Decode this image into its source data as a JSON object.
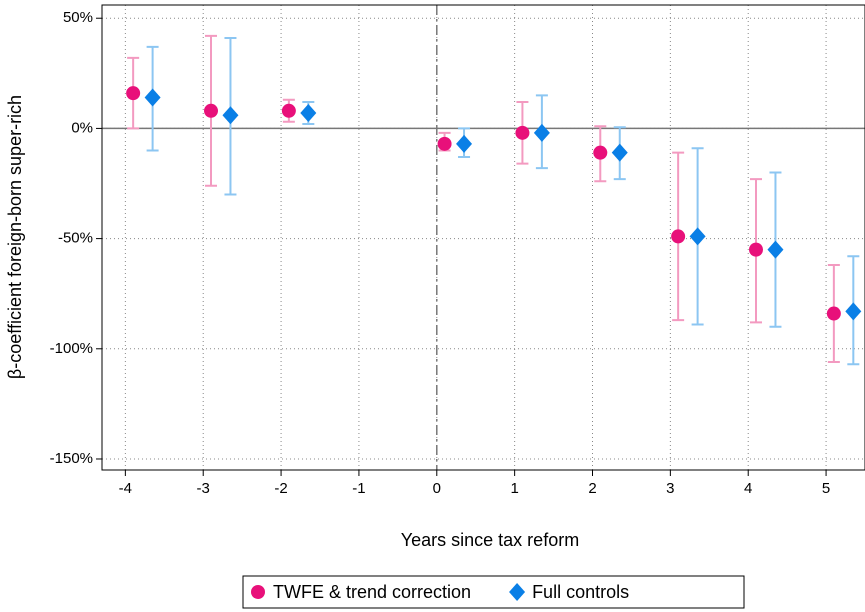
{
  "chart_data": {
    "type": "errorbar",
    "x_label": "Years since tax reform",
    "y_label": "β-coefficient foreign-born super-rich",
    "xlim": [
      -4.3,
      5.5
    ],
    "ylim": [
      -155,
      56
    ],
    "xticks": [
      -4,
      -3,
      -2,
      -1,
      0,
      1,
      2,
      3,
      4,
      5
    ],
    "yticks": [
      {
        "value": 50,
        "label": "50%"
      },
      {
        "value": 0,
        "label": "0%"
      },
      {
        "value": -50,
        "label": "-50%"
      },
      {
        "value": -100,
        "label": "-100%"
      },
      {
        "value": -150,
        "label": "-150%"
      }
    ],
    "grid": true,
    "legend": "bottom",
    "series": [
      {
        "name": "TWFE & trend correction",
        "color": "#e8107a",
        "ci_color": "#f39ac0",
        "marker": "circle",
        "x": [
          -3.9,
          -2.9,
          -1.9,
          0.1,
          1.1,
          2.1,
          3.1,
          4.1,
          5.1
        ],
        "values": [
          16,
          8,
          8,
          -7,
          -2,
          -11,
          -49,
          -55,
          -84
        ],
        "lower": [
          0,
          -26,
          3,
          -10,
          -16,
          -24,
          -87,
          -88,
          -106
        ],
        "upper": [
          32,
          42,
          13,
          -2,
          12,
          1,
          -11,
          -23,
          -62
        ]
      },
      {
        "name": "Full controls",
        "color": "#0a7fe6",
        "ci_color": "#8cc6f2",
        "marker": "diamond",
        "x": [
          -3.65,
          -2.65,
          -1.65,
          0.35,
          1.35,
          2.35,
          3.35,
          4.35,
          5.35
        ],
        "values": [
          14,
          6,
          7,
          -7,
          -2,
          -11,
          -49,
          -55,
          -83
        ],
        "lower": [
          -10,
          -30,
          2,
          -13,
          -18,
          -23,
          -89,
          -90,
          -107
        ],
        "upper": [
          37,
          41,
          12,
          0,
          15,
          0.5,
          -9,
          -20,
          -58
        ]
      }
    ]
  }
}
